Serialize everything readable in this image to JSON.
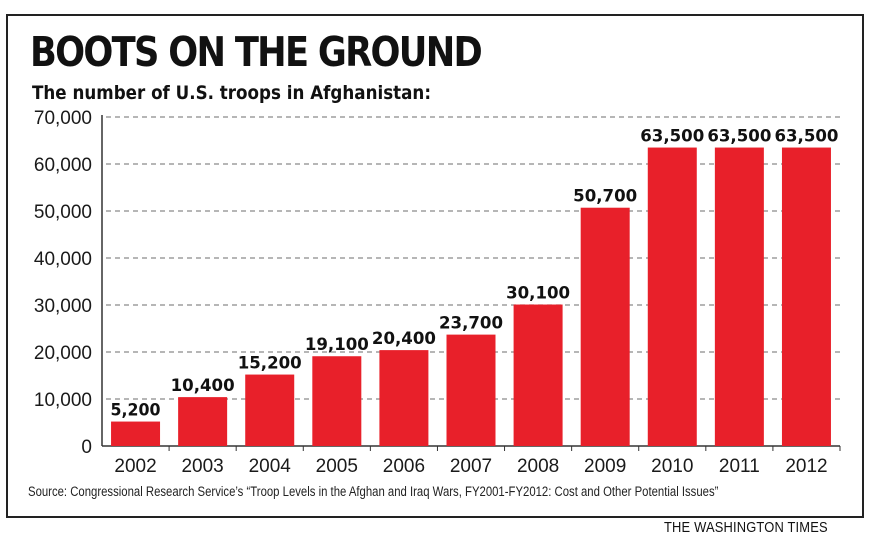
{
  "header": {
    "title": "BOOTS ON THE GROUND",
    "subtitle": "The number of U.S. troops in Afghanistan:"
  },
  "footer": {
    "source": "Source: Congressional Research Service’s “Troop Levels in the Afghan and Iraq Wars, FY2001-FY2012: Cost and Other Potential Issues”",
    "credit": "THE WASHINGTON TIMES"
  },
  "colors": {
    "bar": "#e8202a",
    "grid": "#8a8a8a",
    "text": "#1a1a1a"
  },
  "chart_data": {
    "type": "bar",
    "title": "BOOTS ON THE GROUND",
    "subtitle": "The number of U.S. troops in Afghanistan:",
    "xlabel": "",
    "ylabel": "",
    "categories": [
      "2002",
      "2003",
      "2004",
      "2005",
      "2006",
      "2007",
      "2008",
      "2009",
      "2010",
      "2011",
      "2012"
    ],
    "values": [
      5200,
      10400,
      15200,
      19100,
      20400,
      23700,
      30100,
      50700,
      63500,
      63500,
      63500
    ],
    "value_labels": [
      "5,200",
      "10,400",
      "15,200",
      "19,100",
      "20,400",
      "23,700",
      "30,100",
      "50,700",
      "63,500",
      "63,500",
      "63,500"
    ],
    "ylim": [
      0,
      70000
    ],
    "yticks": [
      0,
      10000,
      20000,
      30000,
      40000,
      50000,
      60000,
      70000
    ],
    "ytick_labels": [
      "0",
      "10,000",
      "20,000",
      "30,000",
      "40,000",
      "50,000",
      "60,000",
      "70,000"
    ],
    "grid": true,
    "grid_style": "dashed",
    "legend": "none"
  }
}
